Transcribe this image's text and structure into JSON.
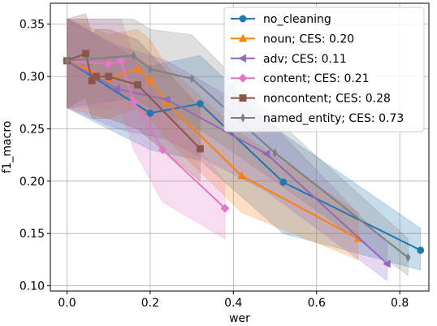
{
  "chart_data": {
    "type": "line",
    "title": "",
    "xlabel": "wer",
    "ylabel": "f1_macro",
    "xlim": [
      -0.04,
      0.87
    ],
    "ylim": [
      0.095,
      0.37
    ],
    "x_ticks": [
      0.0,
      0.2,
      0.4,
      0.6,
      0.8
    ],
    "x_tick_labels": [
      "0.0",
      "0.2",
      "0.4",
      "0.6",
      "0.8"
    ],
    "y_ticks": [
      0.1,
      0.15,
      0.2,
      0.25,
      0.3,
      0.35
    ],
    "y_tick_labels": [
      "0.10",
      "0.15",
      "0.20",
      "0.25",
      "0.30",
      "0.35"
    ],
    "grid": true,
    "legend_position": "top-right",
    "bands": "shaded spread around each series",
    "series": [
      {
        "name": "no_cleaning",
        "color": "#1f77b4",
        "marker": "circle",
        "x": [
          0.0,
          0.2,
          0.32,
          0.52,
          0.85
        ],
        "y": [
          0.315,
          0.265,
          0.274,
          0.199,
          0.134
        ],
        "lower": [
          0.27,
          0.23,
          0.22,
          0.15,
          0.115
        ],
        "upper": [
          0.355,
          0.31,
          0.32,
          0.245,
          0.155
        ]
      },
      {
        "name": "noun; CES: 0.20",
        "color": "#ff7f0e",
        "marker": "triangle",
        "x": [
          0.0,
          0.1,
          0.17,
          0.2,
          0.24,
          0.42,
          0.7
        ],
        "y": [
          0.315,
          0.298,
          0.307,
          0.296,
          0.275,
          0.205,
          0.145
        ],
        "lower": [
          0.27,
          0.26,
          0.27,
          0.26,
          0.24,
          0.17,
          0.125
        ],
        "upper": [
          0.355,
          0.34,
          0.345,
          0.335,
          0.31,
          0.245,
          0.17
        ]
      },
      {
        "name": "adv; CES: 0.11",
        "color": "#9467bd",
        "marker": "triangle-left",
        "x": [
          0.0,
          0.12,
          0.24,
          0.48,
          0.77
        ],
        "y": [
          0.315,
          0.288,
          0.278,
          0.226,
          0.121
        ],
        "lower": [
          0.27,
          0.25,
          0.24,
          0.19,
          0.105
        ],
        "upper": [
          0.355,
          0.33,
          0.315,
          0.26,
          0.14
        ]
      },
      {
        "name": "content; CES: 0.21",
        "color": "#e377c2",
        "marker": "diamond",
        "x": [
          0.0,
          0.1,
          0.13,
          0.16,
          0.23,
          0.38
        ],
        "y": [
          0.315,
          0.312,
          0.315,
          0.276,
          0.23,
          0.174
        ],
        "lower": [
          0.27,
          0.27,
          0.27,
          0.23,
          0.18,
          0.145
        ],
        "upper": [
          0.355,
          0.355,
          0.355,
          0.32,
          0.275,
          0.2
        ]
      },
      {
        "name": "noncontent; CES: 0.28",
        "color": "#8c564b",
        "marker": "square",
        "x": [
          0.0,
          0.045,
          0.06,
          0.07,
          0.1,
          0.17,
          0.32
        ],
        "y": [
          0.315,
          0.322,
          0.296,
          0.3,
          0.3,
          0.292,
          0.231
        ],
        "lower": [
          0.27,
          0.28,
          0.26,
          0.26,
          0.26,
          0.25,
          0.2
        ],
        "upper": [
          0.355,
          0.36,
          0.34,
          0.345,
          0.345,
          0.335,
          0.27
        ]
      },
      {
        "name": "named_entity; CES: 0.73",
        "color": "#7f7f7f",
        "marker": "thin-diamond",
        "x": [
          0.0,
          0.16,
          0.2,
          0.3,
          0.5,
          0.82
        ],
        "y": [
          0.315,
          0.32,
          0.307,
          0.298,
          0.227,
          0.127
        ],
        "lower": [
          0.27,
          0.28,
          0.27,
          0.255,
          0.2,
          0.11
        ],
        "upper": [
          0.355,
          0.355,
          0.345,
          0.34,
          0.26,
          0.145
        ]
      }
    ]
  }
}
